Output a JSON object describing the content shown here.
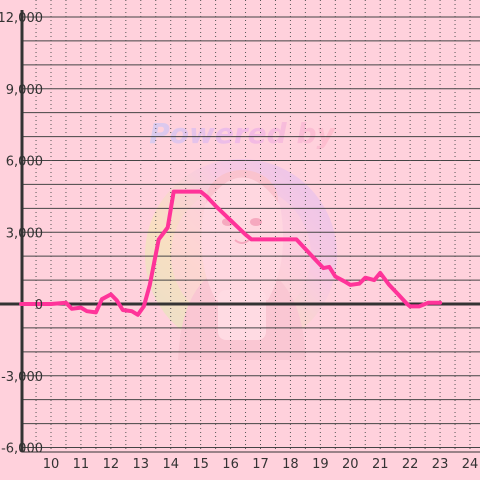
{
  "chart_data": {
    "type": "line",
    "title": "",
    "xlabel": "",
    "ylabel": "",
    "xlim": [
      9.0,
      24.3
    ],
    "ylim": [
      -5800,
      12000
    ],
    "x_ticks": [
      {
        "value": 10,
        "label": "10"
      },
      {
        "value": 11,
        "label": "11"
      },
      {
        "value": 12,
        "label": "12"
      },
      {
        "value": 13,
        "label": "13"
      },
      {
        "value": 14,
        "label": "14"
      },
      {
        "value": 15,
        "label": "15"
      },
      {
        "value": 16,
        "label": "16"
      },
      {
        "value": 17,
        "label": "17"
      },
      {
        "value": 18,
        "label": "18"
      },
      {
        "value": 19,
        "label": "19"
      },
      {
        "value": 20,
        "label": "20"
      },
      {
        "value": 21,
        "label": "21"
      },
      {
        "value": 22,
        "label": "22"
      },
      {
        "value": 23,
        "label": "23"
      },
      {
        "value": 24,
        "label": "24"
      }
    ],
    "y_ticks": [
      {
        "value": 12000,
        "label": "12,000"
      },
      {
        "value": 9000,
        "label": "9,000"
      },
      {
        "value": 6000,
        "label": "6,000"
      },
      {
        "value": 3000,
        "label": "3,000"
      },
      {
        "value": 0,
        "label": "0"
      },
      {
        "value": -3000,
        "label": "-3,000"
      },
      {
        "value": -6000,
        "label": "-6,000"
      }
    ],
    "grid": true,
    "legend": "none",
    "series": [
      {
        "color": "#ff3399",
        "points": [
          [
            9.0,
            0
          ],
          [
            10.0,
            0
          ],
          [
            10.5,
            50
          ],
          [
            10.7,
            -200
          ],
          [
            11.0,
            -150
          ],
          [
            11.2,
            -300
          ],
          [
            11.5,
            -350
          ],
          [
            11.7,
            200
          ],
          [
            12.0,
            400
          ],
          [
            12.2,
            150
          ],
          [
            12.4,
            -250
          ],
          [
            12.7,
            -300
          ],
          [
            12.9,
            -450
          ],
          [
            13.1,
            -100
          ],
          [
            13.3,
            800
          ],
          [
            13.6,
            2700
          ],
          [
            13.9,
            3200
          ],
          [
            14.1,
            4700
          ],
          [
            14.5,
            4700
          ],
          [
            14.7,
            4700
          ],
          [
            15.0,
            4700
          ],
          [
            15.2,
            4500
          ],
          [
            15.5,
            4100
          ],
          [
            16.0,
            3500
          ],
          [
            16.5,
            2900
          ],
          [
            16.7,
            2700
          ],
          [
            17.0,
            2700
          ],
          [
            17.5,
            2700
          ],
          [
            18.0,
            2700
          ],
          [
            18.2,
            2700
          ],
          [
            18.5,
            2300
          ],
          [
            18.8,
            1900
          ],
          [
            19.1,
            1500
          ],
          [
            19.3,
            1550
          ],
          [
            19.5,
            1150
          ],
          [
            19.8,
            950
          ],
          [
            20.0,
            800
          ],
          [
            20.3,
            850
          ],
          [
            20.5,
            1100
          ],
          [
            20.8,
            1000
          ],
          [
            21.0,
            1300
          ],
          [
            21.3,
            800
          ],
          [
            21.6,
            400
          ],
          [
            21.9,
            0
          ],
          [
            22.0,
            -100
          ],
          [
            22.3,
            -100
          ],
          [
            22.6,
            50
          ],
          [
            23.0,
            50
          ]
        ]
      }
    ]
  },
  "watermark": {
    "text": "Powered by",
    "icon": "anime-girl-watermark-icon"
  }
}
